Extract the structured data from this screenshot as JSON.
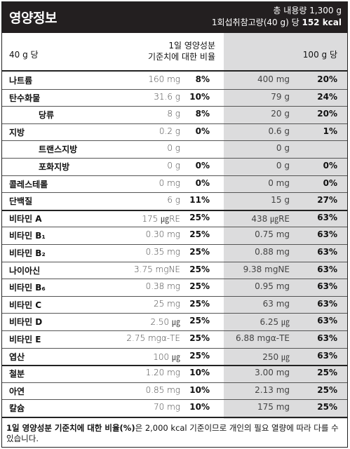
{
  "header": {
    "title": "영양정보",
    "total": "총 내용량 1,300 g",
    "serving": "1회섭취참고량(40 g) 당",
    "kcal": "152 kcal"
  },
  "columns": {
    "per40": "40 g 당",
    "std_line1": "1일 영양성분",
    "std_line2": "기준치에 대한 비율",
    "per100": "100 g 당"
  },
  "rows": [
    {
      "name": "나트륨",
      "v40": "160 mg",
      "p40": "8%",
      "v100": "400 mg",
      "p100": "20%"
    },
    {
      "name": "탄수화물",
      "v40": "31.6 g",
      "p40": "10%",
      "v100": "79 g",
      "p100": "24%"
    },
    {
      "name": "당류",
      "v40": "8 g",
      "p40": "8%",
      "v100": "20 g",
      "p100": "20%"
    },
    {
      "name": "지방",
      "v40": "0.2 g",
      "p40": "0%",
      "v100": "0.6 g",
      "p100": "1%"
    },
    {
      "name": "트랜스지방",
      "v40": "0 g",
      "p40": "",
      "v100": "0 g",
      "p100": ""
    },
    {
      "name": "포화지방",
      "v40": "0 g",
      "p40": "0%",
      "v100": "0 g",
      "p100": "0%"
    },
    {
      "name": "콜레스테롤",
      "v40": "0 mg",
      "p40": "0%",
      "v100": "0 mg",
      "p100": "0%"
    },
    {
      "name": "단백질",
      "v40": "6 g",
      "p40": "11%",
      "v100": "15 g",
      "p100": "27%"
    },
    {
      "name": "비타민 A",
      "v40": "175 ㎍RE",
      "p40": "25%",
      "v100": "438 ㎍RE",
      "p100": "63%"
    },
    {
      "name": "비타민 B₁",
      "v40": "0.30 mg",
      "p40": "25%",
      "v100": "0.75 mg",
      "p100": "63%"
    },
    {
      "name": "비타민 B₂",
      "v40": "0.35 mg",
      "p40": "25%",
      "v100": "0.88 mg",
      "p100": "63%"
    },
    {
      "name": "나이아신",
      "v40": "3.75 mgNE",
      "p40": "25%",
      "v100": "9.38 mgNE",
      "p100": "63%"
    },
    {
      "name": "비타민 B₆",
      "v40": "0.38 mg",
      "p40": "25%",
      "v100": "0.95 mg",
      "p100": "63%"
    },
    {
      "name": "비타민 C",
      "v40": "25 mg",
      "p40": "25%",
      "v100": "63 mg",
      "p100": "63%"
    },
    {
      "name": "비타민 D",
      "v40": "2.50 ㎍",
      "p40": "25%",
      "v100": "6.25 ㎍",
      "p100": "63%"
    },
    {
      "name": "비타민 E",
      "v40": "2.75 mgα-TE",
      "p40": "25%",
      "v100": "6.88 mgα-TE",
      "p100": "63%"
    },
    {
      "name": "엽산",
      "v40": "100 ㎍",
      "p40": "25%",
      "v100": "250 ㎍",
      "p100": "63%"
    },
    {
      "name": "철분",
      "v40": "1.20 mg",
      "p40": "10%",
      "v100": "3.00 mg",
      "p100": "25%"
    },
    {
      "name": "아연",
      "v40": "0.85 mg",
      "p40": "10%",
      "v100": "2.13 mg",
      "p100": "25%"
    },
    {
      "name": "칼슘",
      "v40": "70 mg",
      "p40": "10%",
      "v100": "175 mg",
      "p100": "25%"
    }
  ],
  "footer": {
    "bold": "1일 영양성분 기준치에 대한 비율(%)",
    "text": "은 2,000 kcal 기준이므로 개인의 필요 열량에 따라 다를 수 있습니다."
  }
}
